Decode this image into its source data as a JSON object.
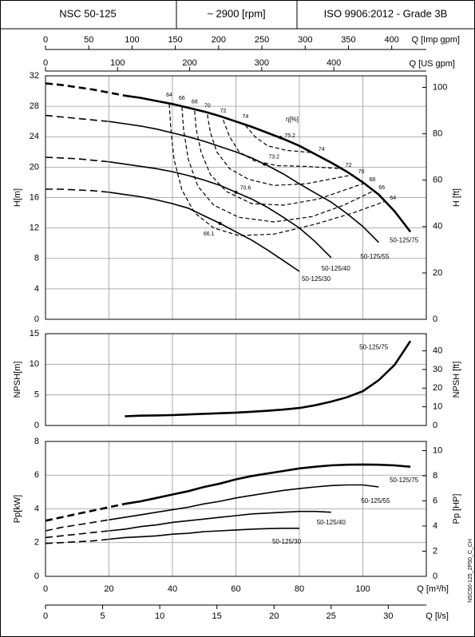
{
  "header": {
    "cells": [
      "NSC 50-125",
      "~ 2900 [rpm]",
      "ISO 9906:2012 - Grade 3B"
    ]
  },
  "side_code": "NSC50-125_2P50_C_CH",
  "chart_data": [
    {
      "type": "line",
      "ylabel": "H[m]",
      "y2label": "H [ft]",
      "xlim": [
        0,
        120
      ],
      "ylim": [
        0,
        32
      ],
      "yticks": [
        0,
        4,
        8,
        12,
        16,
        20,
        24,
        28,
        32
      ],
      "y2lim": [
        0,
        104.99
      ],
      "y2ticks": [
        0,
        20,
        40,
        60,
        80,
        100
      ],
      "x_imp": {
        "label": "Q [Imp gpm]",
        "lim": [
          0,
          439.95
        ],
        "ticks": [
          0,
          50,
          100,
          150,
          200,
          250,
          300,
          350,
          400
        ]
      },
      "x_us": {
        "label": "Q [US gpm]",
        "lim": [
          0,
          528.34
        ],
        "ticks": [
          0,
          100,
          200,
          300,
          400
        ]
      },
      "x": [
        0,
        5,
        10,
        15,
        20,
        25,
        30,
        35,
        40,
        45,
        50,
        55,
        60,
        65,
        70,
        75,
        80,
        85,
        90,
        95,
        100,
        105,
        110,
        115
      ],
      "series": [
        {
          "name": "50-125/75",
          "color": "#000000",
          "dash_until": 25,
          "values": [
            31.0,
            30.8,
            30.5,
            30.2,
            29.8,
            29.4,
            29.1,
            28.7,
            28.3,
            27.8,
            27.3,
            26.7,
            26.0,
            25.3,
            24.5,
            23.7,
            22.8,
            21.7,
            20.6,
            19.4,
            18.0,
            16.4,
            14.2,
            11.5
          ]
        },
        {
          "name": "50-125/55",
          "color": "#000000",
          "dash_until": 20,
          "values": [
            26.8,
            26.6,
            26.4,
            26.2,
            26.0,
            25.7,
            25.4,
            25.0,
            24.5,
            24.0,
            23.4,
            22.7,
            22.0,
            21.2,
            20.2,
            19.1,
            17.8,
            16.6,
            15.4,
            13.9,
            12.2,
            10.1,
            null,
            null
          ]
        },
        {
          "name": "50-125/40",
          "color": "#000000",
          "dash_until": 20,
          "values": [
            21.3,
            21.2,
            21.1,
            20.9,
            20.7,
            20.4,
            20.1,
            19.8,
            19.4,
            18.9,
            18.3,
            17.6,
            16.7,
            15.8,
            14.7,
            13.4,
            12.0,
            10.2,
            8.1,
            null,
            null,
            null,
            null,
            null
          ]
        },
        {
          "name": "50-125/30",
          "color": "#000000",
          "dash_until": 20,
          "values": [
            17.1,
            17.1,
            17.0,
            16.9,
            16.7,
            16.4,
            16.1,
            15.7,
            15.2,
            14.6,
            13.6,
            12.6,
            11.5,
            10.4,
            9.1,
            7.7,
            6.3,
            null,
            null,
            null,
            null,
            null,
            null,
            null
          ]
        }
      ],
      "efficiency_label": "η[%]",
      "efficiency": [
        {
          "name": "64",
          "q": [
            39,
            39.5,
            40.5,
            43,
            47,
            53,
            61,
            72,
            85,
            97,
            107
          ],
          "h": [
            28.3,
            25,
            21,
            17,
            14,
            12,
            11,
            11.2,
            12.5,
            14,
            15.5
          ]
        },
        {
          "name": "66",
          "q": [
            43,
            43.5,
            45,
            48,
            53,
            61,
            72,
            84,
            94,
            103.5
          ],
          "h": [
            27.9,
            25,
            21,
            17.5,
            15,
            13.4,
            12.8,
            13.5,
            15,
            16.9
          ]
        },
        {
          "name": "68",
          "q": [
            47,
            47.5,
            49,
            52,
            57,
            65,
            75,
            86,
            100.5
          ],
          "h": [
            27.4,
            25,
            22,
            19,
            16.8,
            15.2,
            15,
            15.8,
            17.9
          ]
        },
        {
          "name": "70",
          "q": [
            51,
            52,
            54,
            58,
            64,
            72,
            82,
            97
          ],
          "h": [
            26.9,
            24.5,
            22,
            19.8,
            18.4,
            17.6,
            17.8,
            19
          ]
        },
        {
          "name": "72",
          "q": [
            56,
            58,
            61,
            66,
            73,
            82,
            93
          ],
          "h": [
            26.2,
            24,
            22,
            20.8,
            20.2,
            20.1,
            19.8
          ]
        },
        {
          "name": "74",
          "q": [
            63,
            66,
            70,
            76,
            84.5
          ],
          "h": [
            25.5,
            24,
            22.8,
            22.2,
            21.9
          ]
        }
      ],
      "points": [
        {
          "label": "75.2",
          "q": 74,
          "h": 23.9
        },
        {
          "label": "73.2",
          "q": 69,
          "h": 20.4
        },
        {
          "label": "70.6",
          "q": 60,
          "h": 16.7
        },
        {
          "label": "66.1",
          "q": 55,
          "h": 12.6
        }
      ]
    },
    {
      "type": "line",
      "ylabel": "NPSH[m]",
      "y2label": "NPSH [ft]",
      "xlim": [
        0,
        120
      ],
      "ylim": [
        0,
        15
      ],
      "yticks": [
        0,
        5,
        10,
        15
      ],
      "y2lim": [
        0,
        49.21
      ],
      "y2ticks": [
        0,
        10,
        20,
        30,
        40
      ],
      "x": [
        25,
        30,
        35,
        40,
        45,
        50,
        55,
        60,
        65,
        70,
        75,
        80,
        85,
        90,
        95,
        100,
        105,
        110,
        115
      ],
      "series": [
        {
          "name": "50-125/75",
          "color": "#000000",
          "values": [
            1.5,
            1.6,
            1.65,
            1.7,
            1.8,
            1.9,
            2.0,
            2.1,
            2.25,
            2.4,
            2.6,
            2.85,
            3.3,
            3.9,
            4.6,
            5.6,
            7.4,
            9.9,
            13.8
          ]
        }
      ]
    },
    {
      "type": "line",
      "ylabel": "Pp[kW]",
      "y2label": "Pp [HP]",
      "xlabel": "Q [m³/h]",
      "xlim": [
        0,
        120
      ],
      "xticks": [
        0,
        20,
        40,
        60,
        80,
        100
      ],
      "ylim": [
        0,
        8
      ],
      "yticks": [
        0,
        2,
        4,
        6,
        8
      ],
      "y2lim": [
        0,
        10.73
      ],
      "y2ticks": [
        0,
        2,
        4,
        6,
        8,
        10
      ],
      "x_ls": {
        "label": "Q [l/s]",
        "lim": [
          0,
          33.33
        ],
        "ticks": [
          0,
          5,
          10,
          15,
          20,
          25,
          30
        ]
      },
      "x": [
        0,
        5,
        10,
        15,
        20,
        25,
        30,
        35,
        40,
        45,
        50,
        55,
        60,
        65,
        70,
        75,
        80,
        85,
        90,
        95,
        100,
        105,
        110,
        115
      ],
      "series": [
        {
          "name": "50-125/75",
          "color": "#000000",
          "dash_until": 25,
          "values": [
            3.3,
            3.5,
            3.7,
            3.9,
            4.1,
            4.3,
            4.45,
            4.65,
            4.85,
            5.05,
            5.3,
            5.5,
            5.75,
            5.95,
            6.1,
            6.25,
            6.4,
            6.5,
            6.58,
            6.62,
            6.63,
            6.62,
            6.58,
            6.5
          ]
        },
        {
          "name": "50-125/55",
          "color": "#000000",
          "dash_until": 20,
          "values": [
            2.7,
            2.9,
            3.05,
            3.2,
            3.35,
            3.5,
            3.65,
            3.8,
            3.95,
            4.1,
            4.3,
            4.45,
            4.65,
            4.8,
            4.95,
            5.1,
            5.2,
            5.3,
            5.38,
            5.42,
            5.42,
            5.3,
            null,
            null
          ]
        },
        {
          "name": "50-125/40",
          "color": "#000000",
          "dash_until": 20,
          "values": [
            2.3,
            2.4,
            2.5,
            2.6,
            2.7,
            2.8,
            2.95,
            3.05,
            3.2,
            3.3,
            3.4,
            3.5,
            3.6,
            3.7,
            3.75,
            3.8,
            3.85,
            3.85,
            3.8,
            null,
            null,
            null,
            null,
            null
          ]
        },
        {
          "name": "50-125/30",
          "color": "#000000",
          "dash_until": 20,
          "values": [
            1.95,
            2.0,
            2.05,
            2.1,
            2.2,
            2.3,
            2.35,
            2.4,
            2.5,
            2.55,
            2.65,
            2.7,
            2.75,
            2.8,
            2.83,
            2.85,
            2.85,
            null,
            null,
            null,
            null,
            null,
            null,
            null
          ]
        }
      ]
    }
  ]
}
